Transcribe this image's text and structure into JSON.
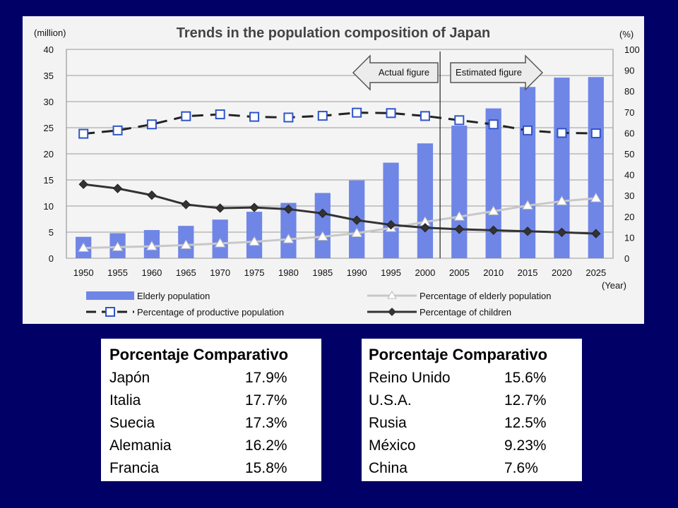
{
  "chart_data": {
    "type": "bar+line",
    "title": "Trends in the population composition of Japan",
    "left_axis_label": "(million)",
    "right_axis_label": "(%)",
    "xlabel": "(Year)",
    "categories": [
      "1950",
      "1955",
      "1960",
      "1965",
      "1970",
      "1975",
      "1980",
      "1985",
      "1990",
      "1995",
      "2000",
      "2005",
      "2010",
      "2015",
      "2020",
      "2025"
    ],
    "left_ylim": [
      0,
      40
    ],
    "left_ticks": [
      "0",
      "5",
      "10",
      "15",
      "20",
      "25",
      "30",
      "35",
      "40"
    ],
    "right_ylim": [
      0,
      100
    ],
    "right_ticks": [
      "0",
      "10",
      "20",
      "30",
      "40",
      "50",
      "60",
      "70",
      "80",
      "90",
      "100"
    ],
    "grid": true,
    "annotations": {
      "actual": "Actual figure",
      "estimated": "Estimated figure"
    },
    "series": [
      {
        "name": "Elderly population",
        "kind": "bar",
        "axis": "left",
        "color": "#6f86e6",
        "values": [
          4.1,
          4.8,
          5.4,
          6.2,
          7.4,
          8.9,
          10.6,
          12.5,
          14.9,
          18.3,
          22.0,
          25.4,
          28.7,
          32.8,
          34.6,
          34.7
        ]
      },
      {
        "name": "Percentage of elderly population",
        "kind": "line",
        "axis": "right",
        "color": "#c8c8c8",
        "values": [
          4.9,
          5.3,
          5.7,
          6.3,
          7.1,
          7.9,
          9.1,
          10.3,
          12.0,
          14.5,
          17.4,
          19.9,
          22.5,
          25.2,
          27.3,
          28.7
        ]
      },
      {
        "name": "Percentage of productive population",
        "kind": "line",
        "axis": "right",
        "color": "#222222",
        "values": [
          59.6,
          61.2,
          64.1,
          68.0,
          68.9,
          67.7,
          67.4,
          68.2,
          69.7,
          69.5,
          68.1,
          66.1,
          64.1,
          61.2,
          60.0,
          59.8
        ]
      },
      {
        "name": "Percentage of children",
        "kind": "line",
        "axis": "right",
        "color": "#333333",
        "values": [
          35.4,
          33.4,
          30.2,
          25.7,
          24.0,
          24.3,
          23.5,
          21.5,
          18.2,
          16.0,
          14.6,
          13.9,
          13.4,
          12.9,
          12.4,
          11.8
        ]
      }
    ]
  },
  "tables": [
    {
      "header": "Porcentaje Comparativo",
      "rows": [
        {
          "country": "Japón",
          "value": "17.9%"
        },
        {
          "country": "Italia",
          "value": "17.7%"
        },
        {
          "country": "Suecia",
          "value": "17.3%"
        },
        {
          "country": "Alemania",
          "value": "16.2%"
        },
        {
          "country": "Francia",
          "value": "15.8%"
        }
      ]
    },
    {
      "header": "Porcentaje Comparativo",
      "rows": [
        {
          "country": "Reino Unido",
          "value": "15.6%"
        },
        {
          "country": "U.S.A.",
          "value": "12.7%"
        },
        {
          "country": "Rusia",
          "value": "12.5%"
        },
        {
          "country": "México",
          "value": "9.23%"
        },
        {
          "country": "China",
          "value": "7.6%"
        }
      ]
    }
  ]
}
